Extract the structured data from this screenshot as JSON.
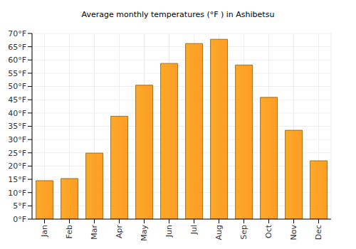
{
  "chart_data": {
    "type": "bar",
    "title": "Average monthly temperatures (°F ) in Ashibetsu",
    "categories": [
      "Jan",
      "Feb",
      "Mar",
      "Apr",
      "May",
      "Jun",
      "Jul",
      "Aug",
      "Sep",
      "Oct",
      "Nov",
      "Dec"
    ],
    "values": [
      14.5,
      15.3,
      24.9,
      38.8,
      50.5,
      58.7,
      66.2,
      67.8,
      58.1,
      45.9,
      33.5,
      22.0
    ],
    "color": "#fbaa2a",
    "ylim": [
      0,
      70
    ],
    "yticks": [
      {
        "value": 0,
        "label": "0°F"
      },
      {
        "value": 5,
        "label": "5°F"
      },
      {
        "value": 10,
        "label": "10°F"
      },
      {
        "value": 15,
        "label": "15°F"
      },
      {
        "value": 20,
        "label": "20°F"
      },
      {
        "value": 25,
        "label": "25°F"
      },
      {
        "value": 30,
        "label": "30°F"
      },
      {
        "value": 35,
        "label": "35°F"
      },
      {
        "value": 40,
        "label": "40°F"
      },
      {
        "value": 45,
        "label": "45°F"
      },
      {
        "value": 50,
        "label": "50°F"
      },
      {
        "value": 55,
        "label": "55°F"
      },
      {
        "value": 60,
        "label": "60°F"
      },
      {
        "value": 65,
        "label": "65°F"
      },
      {
        "value": 70,
        "label": "70°F"
      }
    ],
    "grid": true
  }
}
